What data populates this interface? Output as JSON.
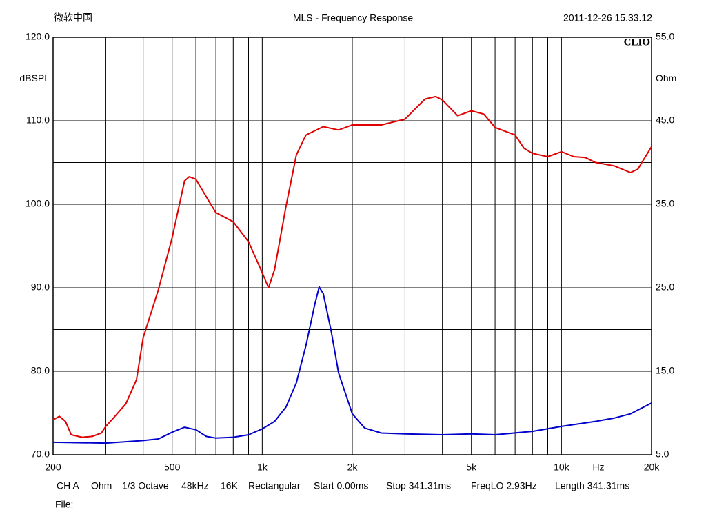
{
  "header": {
    "left": "微软中国",
    "date": "2011-12-26 15.33.12"
  },
  "chart_data": {
    "type": "line",
    "title": "MLS - Frequency Response",
    "brand": "CLIO",
    "ylabel": "dBSPL",
    "y2label": "Ohm",
    "xlabel": "Hz",
    "xscale": "log",
    "grid": true,
    "xlim": [
      200,
      20000
    ],
    "xticks": [
      {
        "value": 200,
        "label": "200"
      },
      {
        "value": 500,
        "label": "500"
      },
      {
        "value": 1000,
        "label": "1k"
      },
      {
        "value": 2000,
        "label": "2k"
      },
      {
        "value": 5000,
        "label": "5k"
      },
      {
        "value": 10000,
        "label": "10k"
      },
      {
        "value": 20000,
        "label": "20k"
      }
    ],
    "xminor": [
      300,
      400,
      600,
      700,
      800,
      900,
      3000,
      4000,
      6000,
      7000,
      8000,
      9000
    ],
    "ylim": [
      70,
      120
    ],
    "yticks": [
      {
        "value": 70,
        "label": "70.0"
      },
      {
        "value": 80,
        "label": "80.0"
      },
      {
        "value": 90,
        "label": "90.0"
      },
      {
        "value": 100,
        "label": "100.0"
      },
      {
        "value": 110,
        "label": "110.0"
      },
      {
        "value": 120,
        "label": "120.0"
      }
    ],
    "yminor": [
      75,
      85,
      95,
      105,
      115
    ],
    "y2lim": [
      5,
      55
    ],
    "y2ticks": [
      {
        "value": 5,
        "label": "5.0"
      },
      {
        "value": 15,
        "label": "15.0"
      },
      {
        "value": 25,
        "label": "25.0"
      },
      {
        "value": 35,
        "label": "35.0"
      },
      {
        "value": 45,
        "label": "45.0"
      },
      {
        "value": 55,
        "label": "55.0"
      }
    ],
    "series": [
      {
        "color": "#e00000",
        "x": [
          200,
          210,
          220,
          230,
          250,
          270,
          290,
          300,
          320,
          350,
          380,
          400,
          450,
          500,
          550,
          570,
          600,
          650,
          700,
          800,
          900,
          1000,
          1050,
          1100,
          1200,
          1300,
          1400,
          1600,
          1800,
          2000,
          2500,
          3000,
          3500,
          3800,
          4000,
          4500,
          5000,
          5500,
          6000,
          7000,
          7500,
          8000,
          9000,
          10000,
          11000,
          12000,
          13000,
          15000,
          17000,
          18000,
          20000
        ],
        "values": [
          74.2,
          74.6,
          74.0,
          72.4,
          72.1,
          72.2,
          72.6,
          73.4,
          74.5,
          76.1,
          79.0,
          84.0,
          89.8,
          96.0,
          102.8,
          103.3,
          103.0,
          100.9,
          99.0,
          97.9,
          95.5,
          91.8,
          90.0,
          92.2,
          99.7,
          105.9,
          108.3,
          109.3,
          108.9,
          109.5,
          109.5,
          110.2,
          112.6,
          112.9,
          112.5,
          110.6,
          111.2,
          110.8,
          109.2,
          108.3,
          106.7,
          106.1,
          105.7,
          106.3,
          105.7,
          105.6,
          105.0,
          104.6,
          103.8,
          104.2,
          106.9
        ]
      },
      {
        "color": "#0000cc",
        "axis": "y2",
        "x": [
          200,
          300,
          400,
          450,
          500,
          550,
          600,
          650,
          700,
          800,
          900,
          1000,
          1100,
          1200,
          1300,
          1400,
          1500,
          1550,
          1600,
          1700,
          1800,
          2000,
          2200,
          2500,
          3000,
          4000,
          5000,
          6000,
          8000,
          10000,
          13000,
          15000,
          17000,
          20000
        ],
        "values": [
          6.5,
          6.4,
          6.7,
          6.9,
          7.7,
          8.3,
          8.0,
          7.2,
          7.0,
          7.1,
          7.4,
          8.1,
          9.0,
          10.7,
          13.6,
          18.1,
          23.1,
          25.1,
          24.3,
          19.8,
          14.8,
          9.9,
          8.2,
          7.6,
          7.5,
          7.4,
          7.5,
          7.4,
          7.8,
          8.4,
          9.0,
          9.4,
          9.9,
          11.2
        ]
      }
    ]
  },
  "footer": {
    "settings": [
      "CH A",
      "Ohm",
      "1/3 Octave",
      "48kHz",
      "16K",
      "Rectangular",
      "Start 0.00ms",
      "Stop 341.31ms",
      "FreqLO 2.93Hz",
      "Length 341.31ms"
    ],
    "file": "File:"
  }
}
